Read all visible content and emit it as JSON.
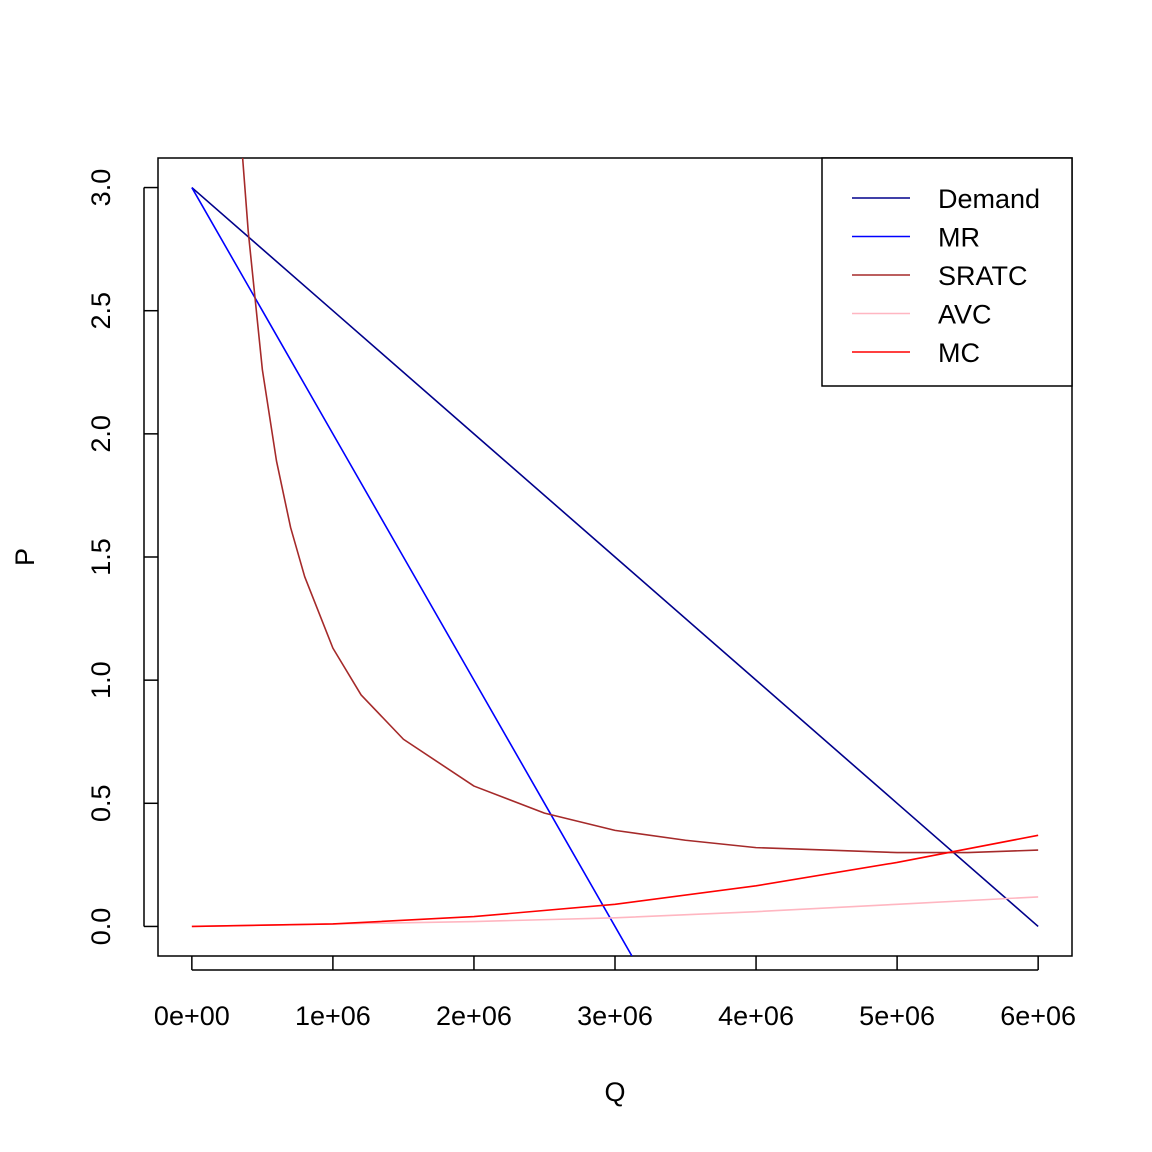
{
  "chart_data": {
    "type": "line",
    "title": "",
    "xlabel": "Q",
    "ylabel": "P",
    "xlim": [
      -240000,
      6240000
    ],
    "ylim": [
      -0.12,
      3.12
    ],
    "x_ticks": [
      {
        "value": 0,
        "label": "0e+00"
      },
      {
        "value": 1000000,
        "label": "1e+06"
      },
      {
        "value": 2000000,
        "label": "2e+06"
      },
      {
        "value": 3000000,
        "label": "3e+06"
      },
      {
        "value": 4000000,
        "label": "4e+06"
      },
      {
        "value": 5000000,
        "label": "5e+06"
      },
      {
        "value": 6000000,
        "label": "6e+06"
      }
    ],
    "y_ticks": [
      {
        "value": 0.0,
        "label": "0.0"
      },
      {
        "value": 0.5,
        "label": "0.5"
      },
      {
        "value": 1.0,
        "label": "1.0"
      },
      {
        "value": 1.5,
        "label": "1.5"
      },
      {
        "value": 2.0,
        "label": "2.0"
      },
      {
        "value": 2.5,
        "label": "2.5"
      },
      {
        "value": 3.0,
        "label": "3.0"
      }
    ],
    "grid": false,
    "legend_position": "top-right",
    "series": [
      {
        "name": "Demand",
        "color": "#00008B",
        "x": [
          0,
          1000000,
          2000000,
          3000000,
          4000000,
          5000000,
          6000000
        ],
        "y": [
          3.0,
          2.5,
          2.0,
          1.5,
          1.0,
          0.5,
          0.0
        ]
      },
      {
        "name": "MR",
        "color": "#0000FF",
        "x": [
          0,
          500000,
          1000000,
          1500000,
          2000000,
          2500000,
          3000000,
          3120000
        ],
        "y": [
          3.0,
          2.5,
          2.0,
          1.5,
          1.0,
          0.5,
          0.0,
          -0.12
        ]
      },
      {
        "name": "SRATC",
        "color": "#A52A2A",
        "x": [
          360000,
          400000,
          500000,
          600000,
          700000,
          800000,
          1000000,
          1200000,
          1500000,
          2000000,
          2500000,
          3000000,
          3500000,
          4000000,
          4500000,
          5000000,
          5500000,
          6000000
        ],
        "y": [
          3.12,
          2.82,
          2.26,
          1.89,
          1.62,
          1.42,
          1.13,
          0.94,
          0.76,
          0.57,
          0.46,
          0.39,
          0.35,
          0.32,
          0.31,
          0.3,
          0.3,
          0.31
        ]
      },
      {
        "name": "AVC",
        "color": "#FFB6C1",
        "x": [
          0,
          1000000,
          2000000,
          3000000,
          4000000,
          5000000,
          6000000
        ],
        "y": [
          0.0,
          0.01,
          0.02,
          0.035,
          0.06,
          0.09,
          0.12
        ]
      },
      {
        "name": "MC",
        "color": "#FF0000",
        "x": [
          0,
          1000000,
          2000000,
          3000000,
          4000000,
          5000000,
          6000000
        ],
        "y": [
          0.0,
          0.01,
          0.04,
          0.09,
          0.165,
          0.26,
          0.37
        ]
      }
    ]
  }
}
